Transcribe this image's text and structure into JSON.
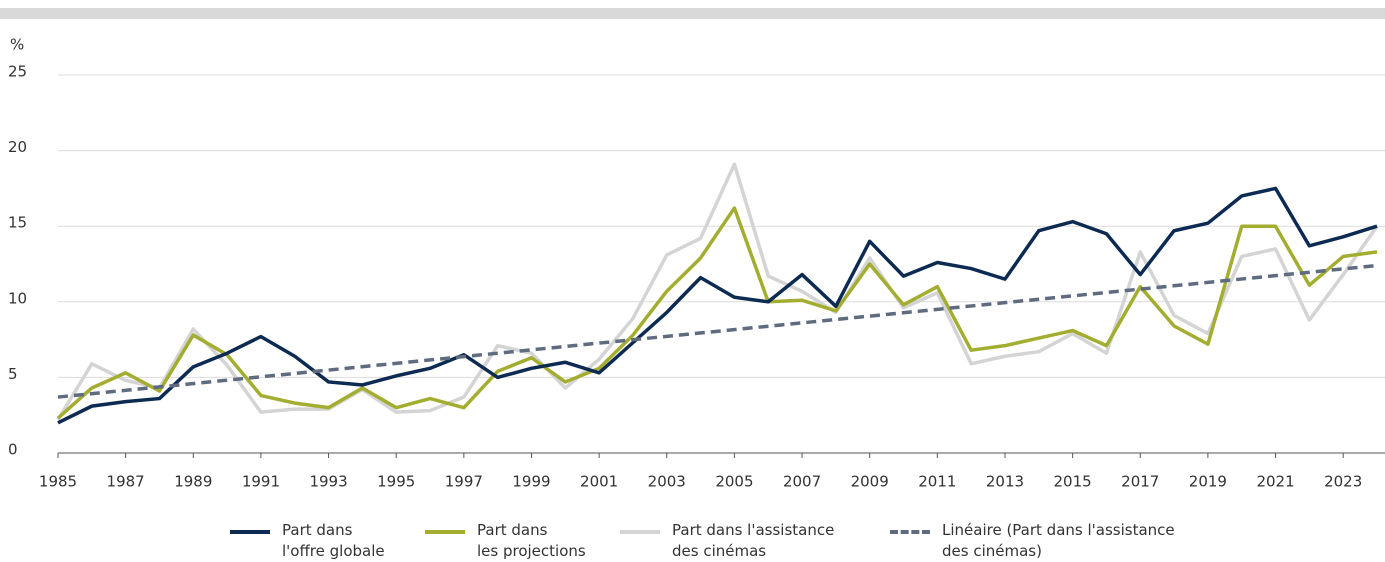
{
  "chart_data": {
    "type": "line",
    "y_unit_label": "%",
    "x": [
      1985,
      1986,
      1987,
      1988,
      1989,
      1990,
      1991,
      1992,
      1993,
      1994,
      1995,
      1996,
      1997,
      1998,
      1999,
      2000,
      2001,
      2002,
      2003,
      2004,
      2005,
      2006,
      2007,
      2008,
      2009,
      2010,
      2011,
      2012,
      2013,
      2014,
      2015,
      2016,
      2017,
      2018,
      2019,
      2020,
      2021,
      2022,
      2023,
      2024
    ],
    "xlim": [
      1985,
      2024
    ],
    "xticks": [
      1985,
      1987,
      1989,
      1991,
      1993,
      1995,
      1997,
      1999,
      2001,
      2003,
      2005,
      2007,
      2009,
      2011,
      2013,
      2015,
      2017,
      2019,
      2021,
      2023
    ],
    "ylim": [
      0,
      25
    ],
    "yticks": [
      0,
      5,
      10,
      15,
      20,
      25
    ],
    "grid": true,
    "legend": "bottom",
    "series": [
      {
        "name": "Part dans\nl'offre globale",
        "color": "#0d2b52",
        "values": [
          2.0,
          3.1,
          3.4,
          3.6,
          5.7,
          6.6,
          7.7,
          6.4,
          4.7,
          4.5,
          5.1,
          5.6,
          6.5,
          5.0,
          5.6,
          6.0,
          5.3,
          7.3,
          9.3,
          11.6,
          10.3,
          10.0,
          11.8,
          9.7,
          14.0,
          11.7,
          12.6,
          12.2,
          11.5,
          14.7,
          15.3,
          14.5,
          11.8,
          14.7,
          15.2,
          17.0,
          17.5,
          13.7,
          14.3,
          15.0
        ]
      },
      {
        "name": "Part dans\nles projections",
        "color": "#a3ad2f",
        "values": [
          2.3,
          4.3,
          5.3,
          4.1,
          7.8,
          6.5,
          3.8,
          3.3,
          3.0,
          4.3,
          3.0,
          3.6,
          3.0,
          5.4,
          6.3,
          4.7,
          5.6,
          7.8,
          10.7,
          12.9,
          16.2,
          10.0,
          10.1,
          9.4,
          12.5,
          9.8,
          11.0,
          6.8,
          7.1,
          7.6,
          8.1,
          7.1,
          11.0,
          8.4,
          7.2,
          15.0,
          15.0,
          11.1,
          13.0,
          13.3
        ]
      },
      {
        "name": "Part dans l'assistance\ndes cinémas",
        "color": "#d4d4d4",
        "values": [
          2.2,
          5.9,
          4.8,
          4.3,
          8.2,
          5.8,
          2.7,
          2.9,
          2.9,
          4.2,
          2.7,
          2.8,
          3.7,
          7.1,
          6.6,
          4.3,
          6.2,
          8.9,
          13.1,
          14.2,
          19.1,
          11.7,
          10.7,
          9.3,
          12.9,
          9.6,
          10.6,
          5.9,
          6.4,
          6.7,
          7.9,
          6.6,
          13.3,
          9.1,
          7.9,
          13.0,
          13.5,
          8.8,
          11.8,
          15.0
        ]
      },
      {
        "name": "Linéaire (Part dans l'assistance\ndes cinémas)",
        "color": "#5f6b7e",
        "dashed": true,
        "x": [
          1985,
          2024
        ],
        "values": [
          3.7,
          12.4
        ]
      }
    ]
  }
}
